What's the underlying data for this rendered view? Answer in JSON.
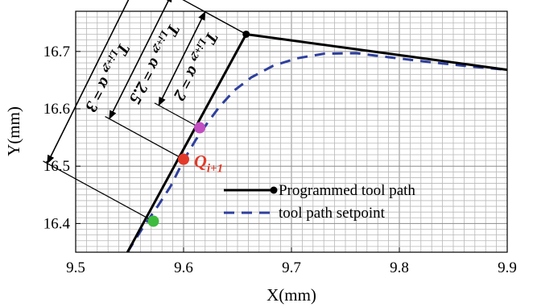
{
  "chart_data": {
    "type": "line",
    "xlabel": "X(mm)",
    "ylabel": "Y(mm)",
    "xlim": [
      9.5,
      9.9
    ],
    "ylim": [
      16.35,
      16.77
    ],
    "xticks": [
      "9.5",
      "9.6",
      "9.7",
      "9.8",
      "9.9"
    ],
    "yticks": [
      "16.4",
      "16.5",
      "16.6",
      "16.7"
    ],
    "grid": true,
    "legend_position": "inside-center-bottom",
    "series": [
      {
        "name": "Programmed tool path",
        "style": "solid-black-with-dot-markers",
        "color": "#000000",
        "x": [
          9.548,
          9.658,
          9.9
        ],
        "y": [
          16.35,
          16.73,
          16.668
        ]
      },
      {
        "name": "tool path setpoint",
        "style": "dashed-blue",
        "color": "#2e3f9e",
        "x": [
          9.548,
          9.563,
          9.576,
          9.588,
          9.6,
          9.611,
          9.622,
          9.633,
          9.647,
          9.663,
          9.683,
          9.705,
          9.73,
          9.76,
          9.79,
          9.83,
          9.87,
          9.9
        ],
        "y": [
          16.35,
          16.395,
          16.43,
          16.465,
          16.51,
          16.545,
          16.575,
          16.603,
          16.632,
          16.655,
          16.675,
          16.688,
          16.696,
          16.697,
          16.69,
          16.681,
          16.673,
          16.668
        ]
      }
    ],
    "points": [
      {
        "name": "green",
        "x": 9.572,
        "y": 16.404,
        "color": "#3dbb3d"
      },
      {
        "name": "red",
        "x": 9.6,
        "y": 16.512,
        "color": "#e23a2a",
        "label": "Q_{i+1}"
      },
      {
        "name": "magenta",
        "x": 9.615,
        "y": 16.567,
        "color": "#c24ec2"
      },
      {
        "name": "corner",
        "x": 9.658,
        "y": 16.73,
        "color": "#000000"
      }
    ],
    "annotations": [
      {
        "main": "T",
        "sub": "L_{i+2}",
        "rest": ", α = 2"
      },
      {
        "main": "T",
        "sub": "L_{i+2}",
        "rest": ", α = 2.5"
      },
      {
        "main": "T",
        "sub": "L_{i+2}",
        "rest": ", α = 3"
      }
    ],
    "q_label": {
      "main": "Q",
      "sub": "i+1"
    }
  }
}
